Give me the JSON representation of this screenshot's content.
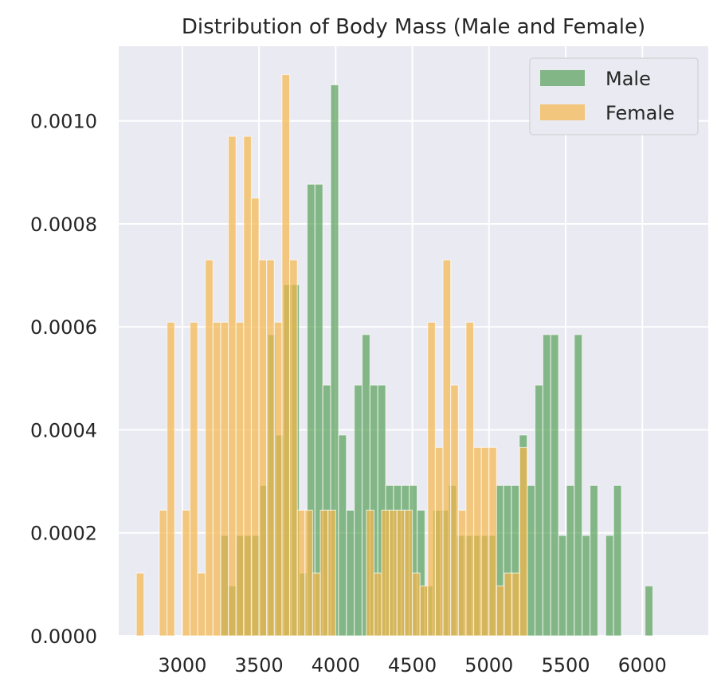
{
  "chart_data": {
    "type": "bar",
    "title": "Distribution of Body Mass (Male and Female)",
    "xlabel": "",
    "ylabel": "",
    "xlim": [
      2585,
      6430
    ],
    "ylim": [
      0,
      0.001145
    ],
    "x_ticks": [
      3000,
      3500,
      4000,
      4500,
      5000,
      5500,
      6000
    ],
    "x_tick_labels": [
      "3000",
      "3500",
      "4000",
      "4500",
      "5000",
      "5500",
      "6000"
    ],
    "y_ticks": [
      0,
      0.0002,
      0.0004,
      0.0006,
      0.0008,
      0.001
    ],
    "y_tick_labels": [
      "0.0000",
      "0.0002",
      "0.0004",
      "0.0006",
      "0.0008",
      "0.0010"
    ],
    "grid": true,
    "legend_position": "top-right",
    "series": [
      {
        "name": "Male",
        "color": "#4c9a4c",
        "opacity": 0.65,
        "bin_start": 3250,
        "bin_width": 51.25,
        "values": [
          0.000195,
          9.7e-05,
          0.000195,
          0.000195,
          0.000195,
          0.000292,
          0.000585,
          0.00039,
          0.000682,
          0.000682,
          0.000122,
          0.000877,
          0.000877,
          0.000487,
          0.00107,
          0.00039,
          0.000244,
          0.000487,
          0.000585,
          0.000487,
          0.000487,
          0.000292,
          0.000292,
          0.000292,
          0.000292,
          0.000244,
          9.7e-05,
          0.000244,
          0.000244,
          0.000292,
          0.000195,
          0.000195,
          0.000195,
          0.000195,
          0.000195,
          0.000292,
          0.000292,
          0.000292,
          0.00039,
          0.000292,
          0.000487,
          0.000585,
          0.000585,
          0.000195,
          0.000292,
          0.000585,
          0.000195,
          0.000292,
          0,
          0.000195,
          0.000292,
          0,
          0,
          0,
          9.7e-05
        ]
      },
      {
        "name": "Female",
        "color": "#f5b74a",
        "opacity": 0.7,
        "bin_start": 2700,
        "bin_width": 50,
        "values": [
          0.000122,
          0,
          0,
          0.000244,
          0.000609,
          0,
          0.000244,
          0.000609,
          0.000122,
          0.00073,
          0.000609,
          0.000609,
          0.00097,
          0.000609,
          0.00097,
          0.00085,
          0.00073,
          0.00073,
          0.000609,
          0.00109,
          0.00073,
          0.000244,
          0.000244,
          0.000122,
          0.000244,
          0.000244,
          0,
          0,
          0,
          0,
          0.000244,
          0.000122,
          0.000244,
          0.000244,
          0.000244,
          0.000244,
          0.000122,
          9.7e-05,
          0.000609,
          0.000366,
          0.00073,
          0.000487,
          0.000244,
          0.000609,
          0.000366,
          0.000366,
          0.000366,
          9.7e-05,
          0.000122,
          0.000122,
          0.000366
        ]
      }
    ]
  }
}
